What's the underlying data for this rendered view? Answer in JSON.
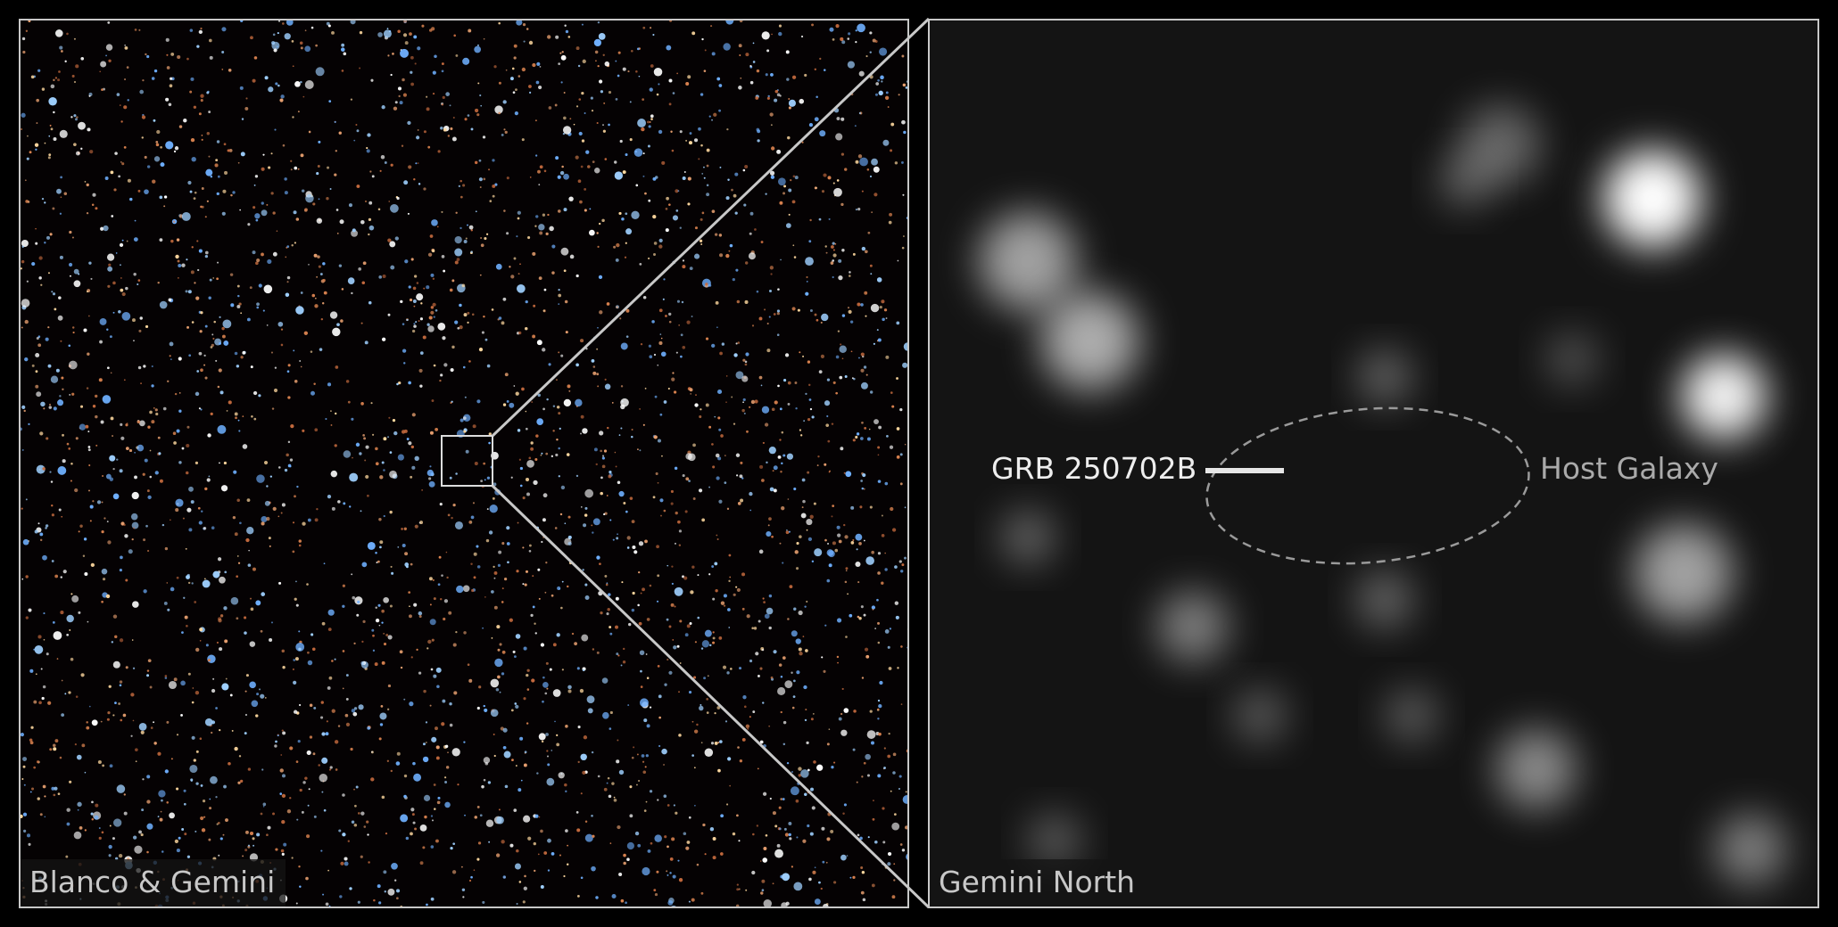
{
  "left_panel": {
    "credit": "Blanco & Gemini"
  },
  "right_panel": {
    "credit": "Gemini North"
  },
  "annotations": {
    "grb_label": "GRB 250702B",
    "host_label": "Host Galaxy"
  },
  "colors": {
    "frame": "#c8c8c8",
    "ellipse": "#9a9a9a"
  }
}
